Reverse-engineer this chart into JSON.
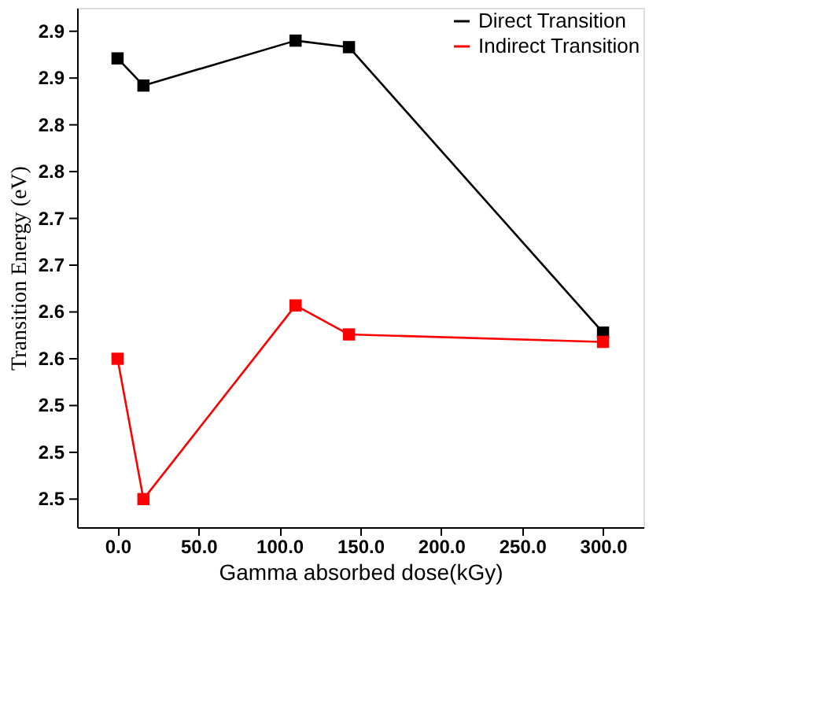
{
  "chart_data": {
    "type": "line",
    "xlabel": "Gamma absorbed dose(kGy)",
    "ylabel": "Transition Energy (eV)",
    "series": [
      {
        "name": "Direct Transition",
        "color": "#000000",
        "x": [
          0,
          16,
          110,
          143,
          300
        ],
        "values": [
          2.921,
          2.892,
          2.94,
          2.933,
          2.628
        ]
      },
      {
        "name": "Indirect Transition",
        "color": "#ff0000",
        "x": [
          0,
          16,
          110,
          143,
          300
        ],
        "values": [
          2.6,
          2.45,
          2.657,
          2.626,
          2.618
        ]
      }
    ],
    "xlim": [
      -25,
      325
    ],
    "xticks": [
      {
        "value": 0,
        "label": "0.0"
      },
      {
        "value": 50,
        "label": "50.0"
      },
      {
        "value": 100,
        "label": "100.0"
      },
      {
        "value": 150,
        "label": "150.0"
      },
      {
        "value": 200,
        "label": "200.0"
      },
      {
        "value": 250,
        "label": "250.0"
      },
      {
        "value": 300,
        "label": "300.0"
      }
    ],
    "ylim": [
      2.42,
      2.975
    ],
    "yticks": [
      {
        "value": 2.45,
        "label": "2.5"
      },
      {
        "value": 2.5,
        "label": "2.5"
      },
      {
        "value": 2.55,
        "label": "2.5"
      },
      {
        "value": 2.6,
        "label": "2.6"
      },
      {
        "value": 2.65,
        "label": "2.6"
      },
      {
        "value": 2.7,
        "label": "2.7"
      },
      {
        "value": 2.75,
        "label": "2.7"
      },
      {
        "value": 2.8,
        "label": "2.8"
      },
      {
        "value": 2.85,
        "label": "2.8"
      },
      {
        "value": 2.9,
        "label": "2.9"
      },
      {
        "value": 2.95,
        "label": "2.9"
      }
    ],
    "marker": "square",
    "line_style": "solid",
    "legend": "top right",
    "grid": false
  }
}
